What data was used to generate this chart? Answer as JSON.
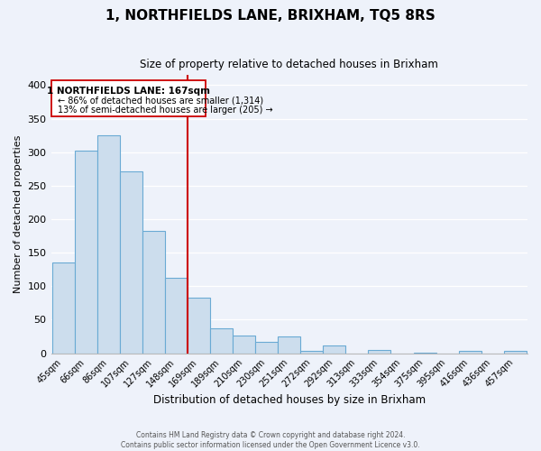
{
  "title": "1, NORTHFIELDS LANE, BRIXHAM, TQ5 8RS",
  "subtitle": "Size of property relative to detached houses in Brixham",
  "xlabel": "Distribution of detached houses by size in Brixham",
  "ylabel": "Number of detached properties",
  "bar_labels": [
    "45sqm",
    "66sqm",
    "86sqm",
    "107sqm",
    "127sqm",
    "148sqm",
    "169sqm",
    "189sqm",
    "210sqm",
    "230sqm",
    "251sqm",
    "272sqm",
    "292sqm",
    "313sqm",
    "333sqm",
    "354sqm",
    "375sqm",
    "395sqm",
    "416sqm",
    "436sqm",
    "457sqm"
  ],
  "bar_values": [
    135,
    302,
    325,
    271,
    182,
    113,
    83,
    37,
    27,
    17,
    25,
    4,
    11,
    0,
    5,
    0,
    1,
    0,
    3,
    0,
    3
  ],
  "bar_color": "#ccdded",
  "bar_edge_color": "#6aaad4",
  "vline_color": "#cc0000",
  "box_edge_color": "#cc0000",
  "property_line_label": "1 NORTHFIELDS LANE: 167sqm",
  "annotation_smaller": "← 86% of detached houses are smaller (1,314)",
  "annotation_larger": "13% of semi-detached houses are larger (205) →",
  "ylim": [
    0,
    415
  ],
  "yticks": [
    0,
    50,
    100,
    150,
    200,
    250,
    300,
    350,
    400
  ],
  "footer_line1": "Contains HM Land Registry data © Crown copyright and database right 2024.",
  "footer_line2": "Contains public sector information licensed under the Open Government Licence v3.0.",
  "bg_color": "#eef2fa",
  "plot_bg_color": "#eef2fa",
  "grid_color": "#ffffff",
  "vline_bar_index": 6
}
